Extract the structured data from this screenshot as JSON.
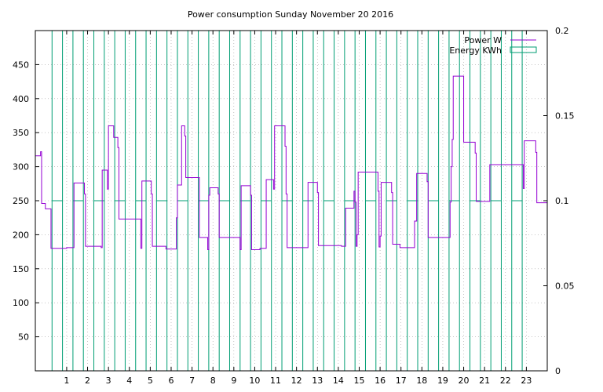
{
  "chart_data": {
    "type": "line",
    "title": "Power consumption Sunday November 20 2016",
    "xlabel": "",
    "ylabel": "",
    "y2label": "",
    "xlim": [
      -0.5,
      24
    ],
    "ylim": [
      0,
      500
    ],
    "y2lim": [
      0,
      0.2
    ],
    "grid": true,
    "legend_position": "top-right",
    "x_ticks": [
      "1",
      "2",
      "3",
      "4",
      "5",
      "6",
      "7",
      "8",
      "9",
      "10",
      "11",
      "12",
      "13",
      "14",
      "15",
      "16",
      "17",
      "18",
      "19",
      "20",
      "21",
      "22",
      "23"
    ],
    "y_ticks": [
      "50",
      "100",
      "150",
      "200",
      "250",
      "300",
      "350",
      "400",
      "450"
    ],
    "y2_ticks": [
      "0",
      "0.05",
      "0.1",
      "0.15",
      "0.2"
    ],
    "series": [
      {
        "name": "Power W",
        "axis": "y1",
        "color": "#9400d3",
        "style": "steps",
        "points": [
          [
            -0.5,
            316
          ],
          [
            -0.3,
            316
          ],
          [
            -0.25,
            322
          ],
          [
            -0.2,
            246
          ],
          [
            -0.05,
            246
          ],
          [
            -0.02,
            238
          ],
          [
            0.2,
            238
          ],
          [
            0.25,
            180
          ],
          [
            0.8,
            180
          ],
          [
            1.0,
            181
          ],
          [
            1.35,
            276
          ],
          [
            1.8,
            276
          ],
          [
            1.85,
            260
          ],
          [
            1.9,
            183
          ],
          [
            2.6,
            183
          ],
          [
            2.65,
            181
          ],
          [
            2.7,
            295
          ],
          [
            2.9,
            295
          ],
          [
            2.95,
            267
          ],
          [
            3.0,
            360
          ],
          [
            3.2,
            360
          ],
          [
            3.25,
            343
          ],
          [
            3.4,
            343
          ],
          [
            3.45,
            328
          ],
          [
            3.5,
            223
          ],
          [
            4.5,
            223
          ],
          [
            4.55,
            180
          ],
          [
            4.6,
            279
          ],
          [
            5.0,
            279
          ],
          [
            5.05,
            260
          ],
          [
            5.1,
            183
          ],
          [
            5.7,
            183
          ],
          [
            5.75,
            179
          ],
          [
            6.2,
            179
          ],
          [
            6.25,
            225
          ],
          [
            6.3,
            273
          ],
          [
            6.45,
            273
          ],
          [
            6.5,
            360
          ],
          [
            6.6,
            360
          ],
          [
            6.65,
            345
          ],
          [
            6.7,
            284
          ],
          [
            7.3,
            284
          ],
          [
            7.35,
            196
          ],
          [
            7.7,
            196
          ],
          [
            7.75,
            178
          ],
          [
            7.8,
            258
          ],
          [
            7.85,
            269
          ],
          [
            8.2,
            269
          ],
          [
            8.25,
            260
          ],
          [
            8.3,
            196
          ],
          [
            9.25,
            196
          ],
          [
            9.3,
            178
          ],
          [
            9.35,
            272
          ],
          [
            9.75,
            272
          ],
          [
            9.8,
            258
          ],
          [
            9.85,
            178
          ],
          [
            10.2,
            178
          ],
          [
            10.25,
            180
          ],
          [
            10.5,
            180
          ],
          [
            10.55,
            281
          ],
          [
            10.85,
            281
          ],
          [
            10.9,
            267
          ],
          [
            10.95,
            360
          ],
          [
            11.4,
            360
          ],
          [
            11.45,
            330
          ],
          [
            11.5,
            260
          ],
          [
            11.55,
            181
          ],
          [
            12.5,
            181
          ],
          [
            12.55,
            277
          ],
          [
            12.95,
            277
          ],
          [
            13.0,
            262
          ],
          [
            13.05,
            184
          ],
          [
            14.1,
            184
          ],
          [
            14.15,
            183
          ],
          [
            14.3,
            183
          ],
          [
            14.35,
            239
          ],
          [
            14.7,
            239
          ],
          [
            14.75,
            264
          ],
          [
            14.8,
            248
          ],
          [
            14.85,
            183
          ],
          [
            14.9,
            200
          ],
          [
            14.95,
            292
          ],
          [
            15.85,
            292
          ],
          [
            15.9,
            264
          ],
          [
            15.95,
            182
          ],
          [
            16.0,
            198
          ],
          [
            16.05,
            277
          ],
          [
            16.5,
            277
          ],
          [
            16.55,
            262
          ],
          [
            16.6,
            186
          ],
          [
            16.9,
            186
          ],
          [
            16.95,
            181
          ],
          [
            17.6,
            181
          ],
          [
            17.65,
            220
          ],
          [
            17.75,
            290
          ],
          [
            18.2,
            290
          ],
          [
            18.25,
            278
          ],
          [
            18.3,
            196
          ],
          [
            19.3,
            196
          ],
          [
            19.35,
            248
          ],
          [
            19.4,
            300
          ],
          [
            19.45,
            340
          ],
          [
            19.5,
            433
          ],
          [
            19.95,
            433
          ],
          [
            20.0,
            336
          ],
          [
            20.5,
            336
          ],
          [
            20.55,
            320
          ],
          [
            20.6,
            249
          ],
          [
            21.2,
            249
          ],
          [
            21.25,
            303
          ],
          [
            22.8,
            303
          ],
          [
            22.85,
            268
          ],
          [
            22.9,
            338
          ],
          [
            23.4,
            338
          ],
          [
            23.45,
            321
          ],
          [
            23.5,
            247
          ],
          [
            24.0,
            247
          ],
          [
            24.0,
            337
          ]
        ]
      },
      {
        "name": "Energy KWh",
        "axis": "y2",
        "color": "#009e73",
        "style": "boxes",
        "bar_value": 0.1,
        "bars": [
          [
            0.3,
            0.8
          ],
          [
            1.3,
            1.8
          ],
          [
            2.3,
            2.8
          ],
          [
            3.3,
            3.8
          ],
          [
            4.3,
            4.8
          ],
          [
            5.3,
            5.8
          ],
          [
            6.3,
            6.8
          ],
          [
            7.3,
            7.8
          ],
          [
            8.3,
            8.8
          ],
          [
            9.3,
            9.8
          ],
          [
            10.3,
            10.8
          ],
          [
            11.3,
            11.8
          ],
          [
            12.3,
            12.8
          ],
          [
            13.3,
            13.8
          ],
          [
            14.3,
            14.8
          ],
          [
            15.3,
            15.8
          ],
          [
            16.3,
            16.8
          ],
          [
            17.3,
            17.8
          ],
          [
            18.3,
            18.8
          ],
          [
            19.3,
            19.8
          ],
          [
            20.3,
            20.8
          ],
          [
            21.3,
            21.8
          ],
          [
            22.3,
            22.8
          ]
        ]
      }
    ]
  }
}
